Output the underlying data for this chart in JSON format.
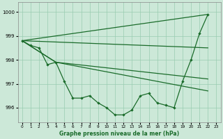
{
  "xlabel": "Graphe pression niveau de la mer (hPa)",
  "ylim": [
    995.4,
    1000.4
  ],
  "xlim": [
    -0.5,
    23.5
  ],
  "yticks": [
    996,
    997,
    998,
    999,
    1000
  ],
  "xticks": [
    0,
    1,
    2,
    3,
    4,
    5,
    6,
    7,
    8,
    9,
    10,
    11,
    12,
    13,
    14,
    15,
    16,
    17,
    18,
    19,
    20,
    21,
    22,
    23
  ],
  "bg_color": "#cce8d8",
  "grid_color": "#99ccb0",
  "line_color": "#1a6b2a",
  "line1_x": [
    0,
    1,
    2,
    3,
    4,
    5,
    6,
    7,
    8,
    9,
    10,
    11,
    12,
    13,
    14,
    15,
    16,
    17,
    18,
    19,
    20,
    21,
    22
  ],
  "line1_y": [
    998.8,
    998.6,
    998.5,
    997.8,
    997.9,
    997.1,
    996.4,
    996.4,
    996.5,
    996.2,
    996.0,
    995.7,
    995.7,
    995.9,
    996.5,
    996.6,
    996.2,
    996.1,
    996.0,
    997.1,
    998.0,
    999.1,
    999.9
  ],
  "fan_lines": [
    {
      "x": [
        0,
        22
      ],
      "y": [
        998.8,
        999.9
      ]
    },
    {
      "x": [
        0,
        1,
        22
      ],
      "y": [
        998.6,
        998.5,
        998.5
      ]
    },
    {
      "x": [
        0,
        4,
        22
      ],
      "y": [
        998.8,
        997.9,
        997.2
      ]
    },
    {
      "x": [
        0,
        4,
        22
      ],
      "y": [
        998.8,
        997.9,
        996.8
      ]
    }
  ]
}
